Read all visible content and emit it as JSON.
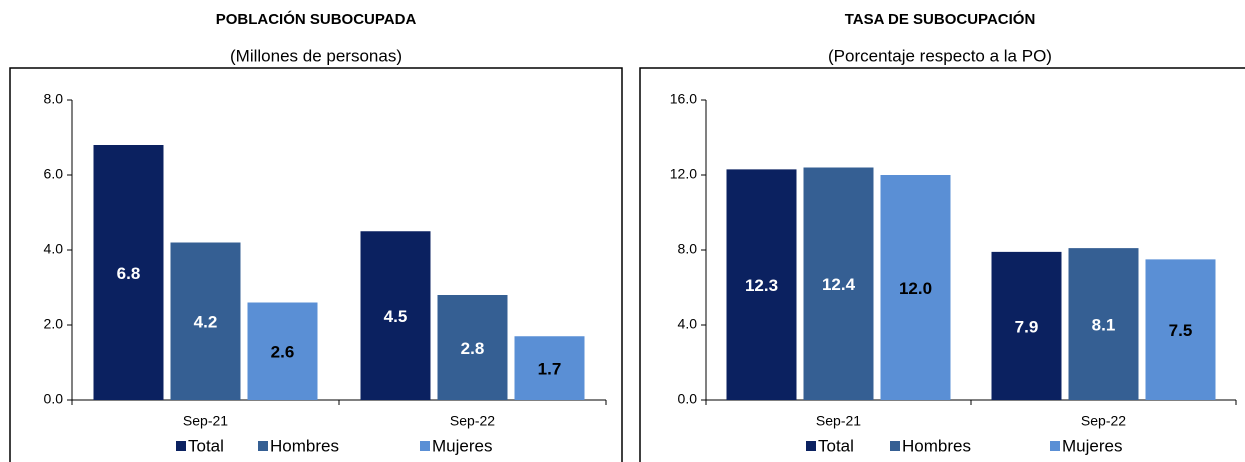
{
  "chart_data": [
    {
      "type": "bar",
      "title": "POBLACIÓN SUBOCUPADA",
      "subtitle": "(Millones de personas)",
      "categories": [
        "Sep-21",
        "Sep-22"
      ],
      "series": [
        {
          "name": "Total",
          "color": "#0b2160",
          "values": [
            6.8,
            4.5
          ]
        },
        {
          "name": "Hombres",
          "color": "#355f93",
          "values": [
            4.2,
            2.8
          ]
        },
        {
          "name": "Mujeres",
          "color": "#5a8fd5",
          "values": [
            2.6,
            1.7
          ]
        }
      ],
      "ylim": [
        0,
        8
      ],
      "yticks": [
        {
          "value": 0,
          "label": "0.0"
        },
        {
          "value": 2,
          "label": "2.0"
        },
        {
          "value": 4,
          "label": "4.0"
        },
        {
          "value": 6,
          "label": "6.0"
        },
        {
          "value": 8,
          "label": "8.0"
        }
      ]
    },
    {
      "type": "bar",
      "title": "TASA DE SUBOCUPACIÓN",
      "subtitle": "(Porcentaje respecto a la PO)",
      "categories": [
        "Sep-21",
        "Sep-22"
      ],
      "series": [
        {
          "name": "Total",
          "color": "#0b2160",
          "values": [
            12.3,
            7.9
          ]
        },
        {
          "name": "Hombres",
          "color": "#355f93",
          "values": [
            12.4,
            8.1
          ]
        },
        {
          "name": "Mujeres",
          "color": "#5a8fd5",
          "values": [
            12,
            7.5
          ],
          "value_labels": [
            "12.0",
            "7.5"
          ]
        }
      ],
      "ylim": [
        0,
        16
      ],
      "yticks": [
        {
          "value": 0,
          "label": "0.0"
        },
        {
          "value": 4,
          "label": "4.0"
        },
        {
          "value": 8,
          "label": "8.0"
        },
        {
          "value": 12,
          "label": "12.0"
        },
        {
          "value": 16,
          "label": "16.0"
        }
      ]
    }
  ]
}
